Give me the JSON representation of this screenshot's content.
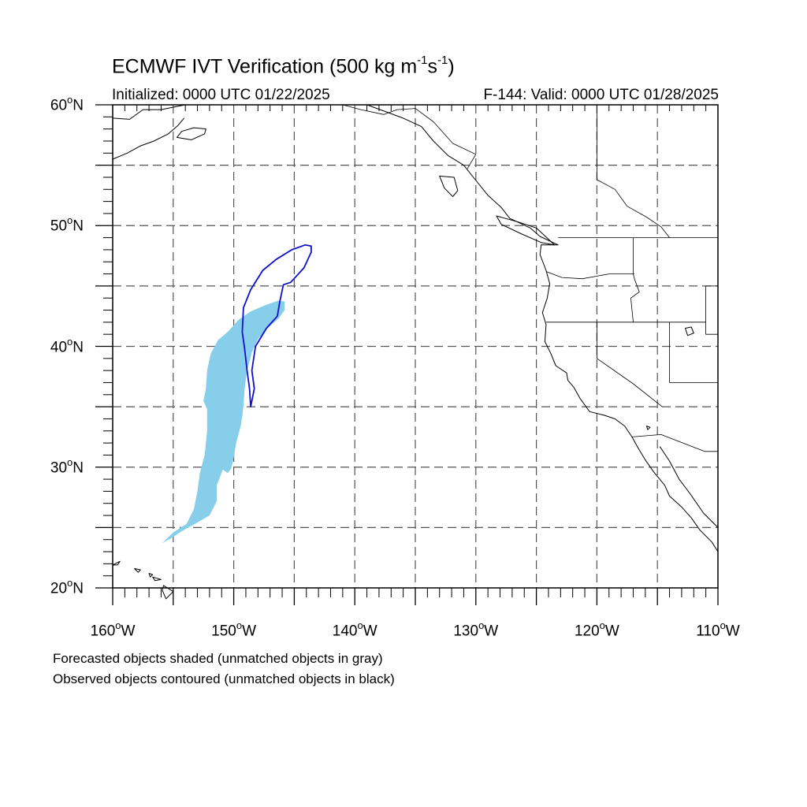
{
  "title": {
    "prefix": "ECMWF IVT Verification (500 kg m",
    "exp1": "-1",
    "mid": "s",
    "exp2": "-1",
    "suffix": ")"
  },
  "initialized": "Initialized: 0000 UTC 01/22/2025",
  "valid": "F-144: Valid: 0000 UTC 01/28/2025",
  "lat_labels": [
    {
      "deg": "60",
      "hemi": "N",
      "value": 60
    },
    {
      "deg": "50",
      "hemi": "N",
      "value": 50
    },
    {
      "deg": "40",
      "hemi": "N",
      "value": 40
    },
    {
      "deg": "30",
      "hemi": "N",
      "value": 30
    },
    {
      "deg": "20",
      "hemi": "N",
      "value": 20
    }
  ],
  "lon_labels": [
    {
      "deg": "160",
      "hemi": "W",
      "value": -160
    },
    {
      "deg": "150",
      "hemi": "W",
      "value": -150
    },
    {
      "deg": "140",
      "hemi": "W",
      "value": -140
    },
    {
      "deg": "130",
      "hemi": "W",
      "value": -130
    },
    {
      "deg": "120",
      "hemi": "W",
      "value": -120
    },
    {
      "deg": "110",
      "hemi": "W",
      "value": -110
    }
  ],
  "degree_symbol": "o",
  "captions": [
    "Forecasted objects shaded (unmatched objects in gray)",
    "Observed objects contoured (unmatched objects in black)"
  ],
  "map_extent": {
    "lon": [
      -160,
      -110
    ],
    "lat": [
      20,
      60
    ]
  },
  "gridlines": {
    "lon_step": 5,
    "lat_step": 5,
    "style": "dashed"
  },
  "colors": {
    "forecast_fill": "#87ceeb",
    "observed_contour": "#1010d0",
    "coastline": "#000000",
    "grid": "#555555"
  },
  "forecast_object": [
    [
      -155.9,
      23.7
    ],
    [
      -155.0,
      24.6
    ],
    [
      -153.9,
      25.3
    ],
    [
      -153.3,
      26.5
    ],
    [
      -153.0,
      28.0
    ],
    [
      -152.8,
      29.5
    ],
    [
      -152.4,
      31.0
    ],
    [
      -152.2,
      33.0
    ],
    [
      -152.2,
      34.8
    ],
    [
      -152.5,
      35.5
    ],
    [
      -152.3,
      36.5
    ],
    [
      -152.2,
      38.0
    ],
    [
      -151.9,
      39.4
    ],
    [
      -151.3,
      40.5
    ],
    [
      -150.4,
      41.3
    ],
    [
      -149.6,
      42.2
    ],
    [
      -148.6,
      42.9
    ],
    [
      -147.4,
      43.4
    ],
    [
      -146.3,
      43.8
    ],
    [
      -145.8,
      43.7
    ],
    [
      -145.8,
      43.0
    ],
    [
      -146.3,
      42.3
    ],
    [
      -147.2,
      41.5
    ],
    [
      -148.0,
      40.6
    ],
    [
      -148.5,
      39.5
    ],
    [
      -148.9,
      38.0
    ],
    [
      -149.1,
      36.5
    ],
    [
      -149.2,
      35.0
    ],
    [
      -149.4,
      33.5
    ],
    [
      -149.8,
      32.0
    ],
    [
      -150.0,
      30.8
    ],
    [
      -150.2,
      29.9
    ],
    [
      -150.5,
      29.5
    ],
    [
      -150.9,
      29.8
    ],
    [
      -151.4,
      28.5
    ],
    [
      -151.4,
      27.2
    ],
    [
      -152.0,
      26.0
    ],
    [
      -153.2,
      25.3
    ],
    [
      -154.3,
      24.7
    ],
    [
      -155.2,
      24.1
    ],
    [
      -155.9,
      23.7
    ]
  ],
  "observed_object": [
    [
      -148.6,
      35.0
    ],
    [
      -148.7,
      36.5
    ],
    [
      -148.9,
      38.0
    ],
    [
      -149.1,
      39.8
    ],
    [
      -149.3,
      41.2
    ],
    [
      -149.2,
      43.2
    ],
    [
      -148.6,
      44.7
    ],
    [
      -147.6,
      46.3
    ],
    [
      -146.5,
      47.2
    ],
    [
      -145.2,
      48.0
    ],
    [
      -144.1,
      48.4
    ],
    [
      -143.6,
      48.3
    ],
    [
      -143.6,
      47.8
    ],
    [
      -144.2,
      46.5
    ],
    [
      -145.3,
      45.3
    ],
    [
      -145.9,
      45.1
    ],
    [
      -146.2,
      43.7
    ],
    [
      -146.4,
      42.5
    ],
    [
      -147.3,
      41.5
    ],
    [
      -148.2,
      40.0
    ],
    [
      -148.5,
      38.0
    ],
    [
      -148.3,
      36.5
    ],
    [
      -148.6,
      35.0
    ]
  ],
  "coastline": [
    [
      -139.0,
      60.0
    ],
    [
      -136.0,
      58.9
    ],
    [
      -134.5,
      58.2
    ],
    [
      -133.5,
      57.0
    ],
    [
      -132.3,
      55.8
    ],
    [
      -131.0,
      55.0
    ],
    [
      -130.2,
      54.0
    ],
    [
      -129.0,
      52.5
    ],
    [
      -127.9,
      51.5
    ],
    [
      -127.2,
      50.6
    ],
    [
      -125.5,
      49.8
    ],
    [
      -124.7,
      49.1
    ],
    [
      -123.2,
      48.4
    ],
    [
      -124.6,
      48.4
    ],
    [
      -124.7,
      47.6
    ],
    [
      -124.2,
      46.3
    ],
    [
      -123.9,
      45.2
    ],
    [
      -124.1,
      44.0
    ],
    [
      -124.5,
      42.8
    ],
    [
      -124.2,
      41.8
    ],
    [
      -124.3,
      40.4
    ],
    [
      -123.8,
      39.4
    ],
    [
      -123.4,
      38.4
    ],
    [
      -122.5,
      37.8
    ],
    [
      -122.4,
      37.2
    ],
    [
      -121.9,
      36.6
    ],
    [
      -121.4,
      35.7
    ],
    [
      -120.6,
      34.6
    ],
    [
      -119.4,
      34.3
    ],
    [
      -118.5,
      34.0
    ],
    [
      -117.7,
      33.4
    ],
    [
      -117.1,
      32.5
    ],
    [
      -116.6,
      31.6
    ],
    [
      -116.0,
      30.6
    ],
    [
      -115.3,
      29.6
    ],
    [
      -114.4,
      28.5
    ],
    [
      -114.0,
      27.6
    ],
    [
      -113.0,
      26.7
    ],
    [
      -112.2,
      25.8
    ],
    [
      -111.5,
      24.8
    ],
    [
      -110.5,
      23.8
    ],
    [
      -110.0,
      23.0
    ]
  ],
  "gulf_coast": [
    [
      -114.8,
      31.7
    ],
    [
      -114.0,
      30.5
    ],
    [
      -113.2,
      29.0
    ],
    [
      -112.3,
      27.8
    ],
    [
      -111.2,
      26.2
    ],
    [
      -110.0,
      25.0
    ]
  ],
  "alaska_coast": [
    [
      -160.0,
      58.9
    ],
    [
      -158.6,
      58.8
    ],
    [
      -157.5,
      59.6
    ],
    [
      -156.0,
      59.6
    ],
    [
      -154.5,
      59.9
    ],
    [
      -154.0,
      60.0
    ]
  ],
  "alaska_peninsula": [
    [
      -160.0,
      55.5
    ],
    [
      -158.8,
      56.0
    ],
    [
      -157.7,
      56.6
    ],
    [
      -156.6,
      57.0
    ],
    [
      -155.4,
      57.6
    ],
    [
      -154.6,
      58.3
    ],
    [
      -154.1,
      58.9
    ]
  ],
  "kodiak": [
    [
      -154.7,
      57.3
    ],
    [
      -153.5,
      57.1
    ],
    [
      -152.4,
      57.6
    ],
    [
      -152.3,
      58.0
    ],
    [
      -153.3,
      58.1
    ],
    [
      -154.3,
      57.8
    ],
    [
      -154.7,
      57.3
    ]
  ],
  "hawaii": [
    [
      [
        -160.0,
        21.9
      ],
      [
        -159.4,
        22.2
      ],
      [
        -159.6,
        21.9
      ],
      [
        -160.0,
        21.9
      ]
    ],
    [
      [
        -158.2,
        21.6
      ],
      [
        -157.7,
        21.5
      ],
      [
        -157.9,
        21.3
      ],
      [
        -158.2,
        21.6
      ]
    ],
    [
      [
        -157.0,
        21.2
      ],
      [
        -156.7,
        21.1
      ],
      [
        -156.9,
        20.9
      ],
      [
        -157.0,
        21.2
      ]
    ],
    [
      [
        -156.7,
        20.9
      ],
      [
        -156.0,
        20.7
      ],
      [
        -156.5,
        20.6
      ],
      [
        -156.7,
        20.9
      ]
    ],
    [
      [
        -155.8,
        20.2
      ],
      [
        -155.0,
        19.7
      ],
      [
        -155.6,
        19.1
      ],
      [
        -155.9,
        19.8
      ],
      [
        -155.8,
        20.2
      ]
    ]
  ],
  "haida_gwaii": [
    [
      -133.0,
      54.1
    ],
    [
      -131.8,
      54.0
    ],
    [
      -131.5,
      52.9
    ],
    [
      -131.9,
      52.4
    ],
    [
      -132.6,
      53.1
    ],
    [
      -133.0,
      54.1
    ]
  ],
  "vancouver_island": [
    [
      -128.3,
      50.8
    ],
    [
      -126.5,
      50.3
    ],
    [
      -125.0,
      49.8
    ],
    [
      -123.5,
      48.4
    ],
    [
      -124.6,
      48.6
    ],
    [
      -126.2,
      49.3
    ],
    [
      -127.9,
      50.1
    ],
    [
      -128.3,
      50.8
    ]
  ],
  "borders": [
    [
      [
        -123.2,
        49.0
      ],
      [
        -110.0,
        49.0
      ]
    ],
    [
      [
        -141.0,
        60.0
      ],
      [
        -139.5,
        59.6
      ],
      [
        -137.6,
        59.2
      ],
      [
        -136.5,
        59.6
      ],
      [
        -135.0,
        59.7
      ],
      [
        -133.5,
        58.6
      ],
      [
        -131.9,
        56.8
      ],
      [
        -130.0,
        55.9
      ],
      [
        -130.7,
        54.7
      ]
    ],
    [
      [
        -120.0,
        60.0
      ],
      [
        -120.0,
        53.8
      ],
      [
        -118.5,
        53.0
      ],
      [
        -117.5,
        51.6
      ],
      [
        -115.9,
        50.7
      ],
      [
        -114.7,
        49.9
      ],
      [
        -114.0,
        49.0
      ]
    ],
    [
      [
        -124.2,
        46.2
      ],
      [
        -122.9,
        45.7
      ],
      [
        -121.2,
        45.6
      ],
      [
        -119.0,
        46.0
      ],
      [
        -116.9,
        46.0
      ]
    ],
    [
      [
        -117.0,
        49.0
      ],
      [
        -117.0,
        46.0
      ],
      [
        -116.9,
        45.6
      ],
      [
        -116.5,
        44.5
      ],
      [
        -117.2,
        44.0
      ],
      [
        -117.0,
        42.0
      ]
    ],
    [
      [
        -124.2,
        42.0
      ],
      [
        -111.0,
        42.0
      ]
    ],
    [
      [
        -120.0,
        42.0
      ],
      [
        -120.0,
        39.0
      ],
      [
        -117.0,
        36.9
      ],
      [
        -114.6,
        35.0
      ]
    ],
    [
      [
        -114.0,
        42.0
      ],
      [
        -114.0,
        37.0
      ]
    ],
    [
      [
        -114.0,
        37.0
      ],
      [
        -110.0,
        37.0
      ]
    ],
    [
      [
        -111.0,
        45.0
      ],
      [
        -110.0,
        45.0
      ]
    ],
    [
      [
        -111.0,
        45.0
      ],
      [
        -111.0,
        41.0
      ],
      [
        -110.0,
        41.0
      ]
    ],
    [
      [
        -117.1,
        32.5
      ],
      [
        -114.7,
        32.7
      ],
      [
        -111.1,
        31.3
      ],
      [
        -110.0,
        31.3
      ]
    ]
  ],
  "lake_salton": [
    [
      -115.9,
      33.4
    ],
    [
      -115.6,
      33.3
    ],
    [
      -115.8,
      33.1
    ],
    [
      -115.9,
      33.4
    ]
  ],
  "great_salt_lake": [
    [
      -112.7,
      41.5
    ],
    [
      -112.2,
      41.6
    ],
    [
      -112.0,
      41.1
    ],
    [
      -112.5,
      40.9
    ],
    [
      -112.7,
      41.5
    ]
  ]
}
